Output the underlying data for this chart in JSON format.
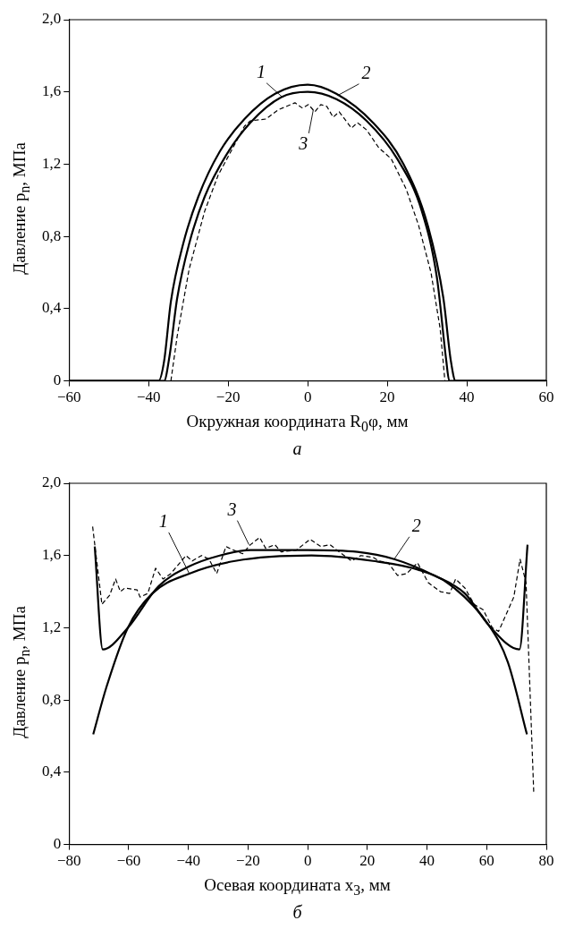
{
  "chart_data": [
    {
      "type": "line",
      "title": "а",
      "xlabel": "Окружная координата R$_{0}$φ, мм",
      "ylabel": "Давление p$_{n}$, МПа",
      "xlim": [
        -60,
        60
      ],
      "ylim": [
        0,
        2
      ],
      "xticks": [
        {
          "value": -60,
          "label": "−60"
        },
        {
          "value": -40,
          "label": "−40"
        },
        {
          "value": -20,
          "label": "−20"
        },
        0,
        20,
        40,
        60
      ],
      "yticks": [
        0,
        {
          "value": 0.4,
          "label": "0,4"
        },
        {
          "value": 0.8,
          "label": "0,8"
        },
        {
          "value": 1.2,
          "label": "1,2"
        },
        {
          "value": 1.6,
          "label": "1,6"
        },
        {
          "value": 2,
          "label": "2,0"
        }
      ],
      "grid": false,
      "legend": false,
      "marker": "none",
      "series": [
        {
          "color": "#000000",
          "line_style": "solid",
          "x": [
            -60,
            -36.1,
            -34.8,
            -32.8,
            -29.8,
            -25.9,
            -20.5,
            -14.4,
            -6.7,
            0,
            7.2,
            14.8,
            22.5,
            28.7,
            32.5,
            34.8,
            35.6,
            60
          ],
          "values": [
            0,
            0,
            0.13,
            0.46,
            0.76,
            1.02,
            1.25,
            1.43,
            1.57,
            1.6,
            1.56,
            1.44,
            1.23,
            0.94,
            0.57,
            0.12,
            0,
            0
          ]
        },
        {
          "color": "#000000",
          "line_style": "solid",
          "x": [
            -60,
            -37.5,
            -36.1,
            -34.4,
            -31.3,
            -27.5,
            -22.1,
            -15.9,
            -8.2,
            0,
            7.2,
            16.4,
            24.1,
            30.2,
            34.1,
            36,
            37.2,
            60
          ],
          "values": [
            0,
            0,
            0.11,
            0.44,
            0.76,
            1.02,
            1.27,
            1.45,
            1.59,
            1.64,
            1.59,
            1.43,
            1.2,
            0.86,
            0.46,
            0.11,
            0,
            0
          ]
        },
        {
          "color": "#000000",
          "line_style": "dashed",
          "x": [
            -34.4,
            -32.8,
            -29.8,
            -25.9,
            -22.5,
            -19.8,
            -15.9,
            -14.4,
            -10.5,
            -7.5,
            -3.2,
            -1.3,
            0.2,
            1.8,
            3.3,
            4.8,
            6.4,
            7.9,
            11,
            12.5,
            14.8,
            17.9,
            21,
            24.8,
            27.9,
            31,
            33.3,
            34.5
          ],
          "values": [
            0,
            0.25,
            0.62,
            0.94,
            1.14,
            1.25,
            1.41,
            1.44,
            1.45,
            1.5,
            1.54,
            1.51,
            1.53,
            1.49,
            1.53,
            1.52,
            1.46,
            1.49,
            1.4,
            1.43,
            1.39,
            1.29,
            1.23,
            1.06,
            0.86,
            0.6,
            0.29,
            0
          ]
        }
      ],
      "annotations": [
        {
          "text": "1",
          "x": -6.3,
          "y": 1.57
        },
        {
          "text": "2",
          "x": 7.5,
          "y": 1.58
        },
        {
          "text": "3",
          "x": 1.4,
          "y": 1.5
        }
      ]
    },
    {
      "type": "line",
      "title": "б",
      "xlabel": "Осевая координата x$_{3}$, мм",
      "ylabel": "Давление p$_{n}$, МПа",
      "xlim": [
        -80,
        80
      ],
      "ylim": [
        0,
        2
      ],
      "xticks": [
        {
          "value": -80,
          "label": "−80"
        },
        {
          "value": -60,
          "label": "−60"
        },
        {
          "value": -40,
          "label": "−40"
        },
        {
          "value": -20,
          "label": "−20"
        },
        0,
        20,
        40,
        60,
        80
      ],
      "yticks": [
        0,
        {
          "value": 0.4,
          "label": "0,4"
        },
        {
          "value": 0.8,
          "label": "0,8"
        },
        {
          "value": 1.2,
          "label": "1,2"
        },
        {
          "value": 1.6,
          "label": "1,6"
        },
        {
          "value": 2,
          "label": "2,0"
        }
      ],
      "grid": false,
      "legend": false,
      "marker": "none",
      "series": [
        {
          "color": "#000000",
          "line_style": "solid",
          "x": [
            -71.9,
            -67.5,
            -60.3,
            -52.1,
            -39.7,
            -24.3,
            1.3,
            21.9,
            37.3,
            47.6,
            60.9,
            67.1,
            73.5
          ],
          "values": [
            0.61,
            0.87,
            1.2,
            1.39,
            1.5,
            1.57,
            1.6,
            1.57,
            1.52,
            1.44,
            1.21,
            1.01,
            0.61
          ]
        },
        {
          "color": "#000000",
          "line_style": "solid",
          "x": [
            -71.4,
            -68.7,
            -60.3,
            -50,
            -39.7,
            -29.5,
            -19.2,
            0,
            16.7,
            29,
            42.4,
            52.7,
            60.9,
            71,
            73.7
          ],
          "values": [
            1.65,
            1.08,
            1.2,
            1.43,
            1.54,
            1.6,
            1.63,
            1.63,
            1.62,
            1.58,
            1.49,
            1.39,
            1.21,
            1.08,
            1.66
          ]
        },
        {
          "color": "#000000",
          "line_style": "dashed",
          "x": [
            -72.1,
            -69,
            -66.4,
            -64.4,
            -62.8,
            -61.3,
            -57.2,
            -56.2,
            -53.6,
            -51,
            -48.5,
            -45.9,
            -40.8,
            -38.7,
            -35.6,
            -33.1,
            -30.5,
            -27.4,
            -24.9,
            -21.8,
            -19.2,
            -16.1,
            -14.1,
            -11,
            -8.9,
            -3.8,
            0.8,
            4.4,
            7.5,
            10.6,
            14.7,
            17.8,
            21.9,
            23.9,
            27,
            30.1,
            33.2,
            36.8,
            40.4,
            44.5,
            47.6,
            49.6,
            52.7,
            55.8,
            58.8,
            61.9,
            64,
            69.1,
            71.2,
            73.2,
            75.8
          ],
          "values": [
            1.76,
            1.33,
            1.38,
            1.47,
            1.4,
            1.42,
            1.41,
            1.37,
            1.39,
            1.53,
            1.47,
            1.5,
            1.6,
            1.57,
            1.6,
            1.58,
            1.5,
            1.65,
            1.63,
            1.61,
            1.66,
            1.7,
            1.64,
            1.66,
            1.62,
            1.63,
            1.69,
            1.65,
            1.66,
            1.62,
            1.57,
            1.6,
            1.59,
            1.57,
            1.56,
            1.49,
            1.5,
            1.56,
            1.45,
            1.4,
            1.39,
            1.47,
            1.42,
            1.33,
            1.3,
            1.2,
            1.18,
            1.37,
            1.58,
            1.45,
            0.28
          ]
        }
      ],
      "annotations": [
        {
          "text": "1",
          "x": -39.7,
          "y": 1.5
        },
        {
          "text": "3",
          "x": -19.7,
          "y": 1.66
        },
        {
          "text": "2",
          "x": 29,
          "y": 1.58
        }
      ]
    }
  ]
}
